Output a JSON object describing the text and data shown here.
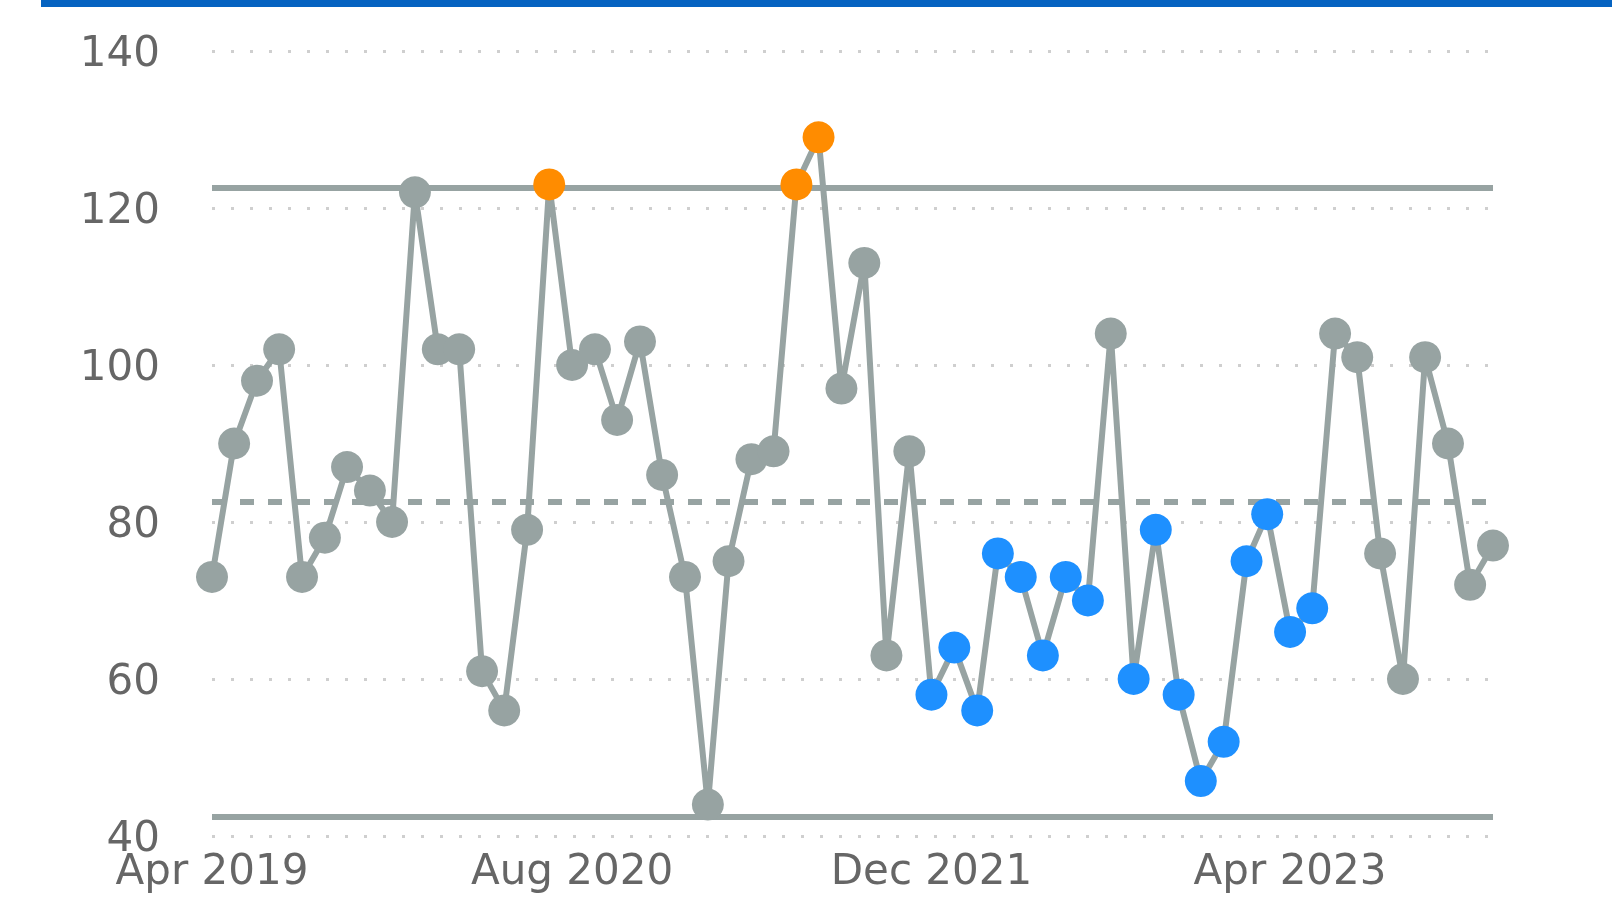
{
  "chart_data": {
    "type": "line",
    "x": [
      "2019-04",
      "2019-05",
      "2019-06",
      "2019-07",
      "2019-08",
      "2019-09",
      "2019-10",
      "2019-11",
      "2019-12",
      "2020-01",
      "2020-02",
      "2020-03",
      "2020-04",
      "2020-05",
      "2020-06",
      "2020-07",
      "2020-08",
      "2020-09",
      "2020-10",
      "2020-11",
      "2020-12",
      "2021-01",
      "2021-02",
      "2021-03",
      "2021-04",
      "2021-05",
      "2021-06",
      "2021-07",
      "2021-08",
      "2021-09",
      "2021-10",
      "2021-11",
      "2021-12",
      "2022-01",
      "2022-02",
      "2022-03",
      "2022-04",
      "2022-05",
      "2022-06",
      "2022-07",
      "2022-08",
      "2022-09",
      "2022-10",
      "2022-11",
      "2022-12",
      "2023-01",
      "2023-02",
      "2023-03",
      "2023-04",
      "2023-05",
      "2023-06",
      "2023-07",
      "2023-08",
      "2023-09",
      "2023-10",
      "2023-11",
      "2023-12",
      "2024-01"
    ],
    "series": [
      {
        "color": "#97a3a2",
        "values": [
          73,
          90,
          98,
          102,
          73,
          78,
          87,
          84,
          80,
          122,
          102,
          102,
          61,
          56,
          79,
          123,
          100,
          102,
          93,
          103,
          86,
          73,
          44,
          75,
          88,
          89,
          123,
          129,
          97,
          113,
          63,
          89,
          58,
          64,
          56,
          76,
          73,
          63,
          73,
          70,
          104,
          60,
          79,
          58,
          47,
          52,
          75,
          81,
          66,
          69,
          104,
          101,
          76,
          60,
          101,
          90,
          72,
          77
        ],
        "colors": [
          "#97a3a2",
          "#97a3a2",
          "#97a3a2",
          "#97a3a2",
          "#97a3a2",
          "#97a3a2",
          "#97a3a2",
          "#97a3a2",
          "#97a3a2",
          "#97a3a2",
          "#97a3a2",
          "#97a3a2",
          "#97a3a2",
          "#97a3a2",
          "#97a3a2",
          "#ff8c00",
          "#97a3a2",
          "#97a3a2",
          "#97a3a2",
          "#97a3a2",
          "#97a3a2",
          "#97a3a2",
          "#97a3a2",
          "#97a3a2",
          "#97a3a2",
          "#97a3a2",
          "#ff8c00",
          "#ff8c00",
          "#97a3a2",
          "#97a3a2",
          "#97a3a2",
          "#97a3a2",
          "#1e90ff",
          "#1e90ff",
          "#1e90ff",
          "#1e90ff",
          "#1e90ff",
          "#1e90ff",
          "#1e90ff",
          "#1e90ff",
          "#97a3a2",
          "#1e90ff",
          "#1e90ff",
          "#1e90ff",
          "#1e90ff",
          "#1e90ff",
          "#1e90ff",
          "#1e90ff",
          "#1e90ff",
          "#1e90ff",
          "#97a3a2",
          "#97a3a2",
          "#97a3a2",
          "#97a3a2",
          "#97a3a2",
          "#97a3a2",
          "#97a3a2",
          "#97a3a2"
        ]
      }
    ],
    "xlim": [
      "2019-04",
      "2024-01"
    ],
    "xticks": [
      {
        "value": "2019-04",
        "label": "Apr 2019"
      },
      {
        "value": "2020-08",
        "label": "Aug 2020"
      },
      {
        "value": "2021-12",
        "label": "Dec 2021"
      },
      {
        "value": "2023-04",
        "label": "Apr 2023"
      }
    ],
    "ylim": [
      40,
      140
    ],
    "yticks": [
      40,
      60,
      80,
      100,
      120,
      140
    ],
    "ref_lines": [
      {
        "axis": "y",
        "value": 122.6,
        "color": "#97a3a2",
        "line_style": "solid"
      },
      {
        "axis": "y",
        "value": 82.6,
        "color": "#97a3a2",
        "line_style": "dashed"
      },
      {
        "axis": "y",
        "value": 42.5,
        "color": "#97a3a2",
        "line_style": "solid"
      }
    ],
    "grid": "y",
    "marker": "circle",
    "line_style": "solid"
  }
}
